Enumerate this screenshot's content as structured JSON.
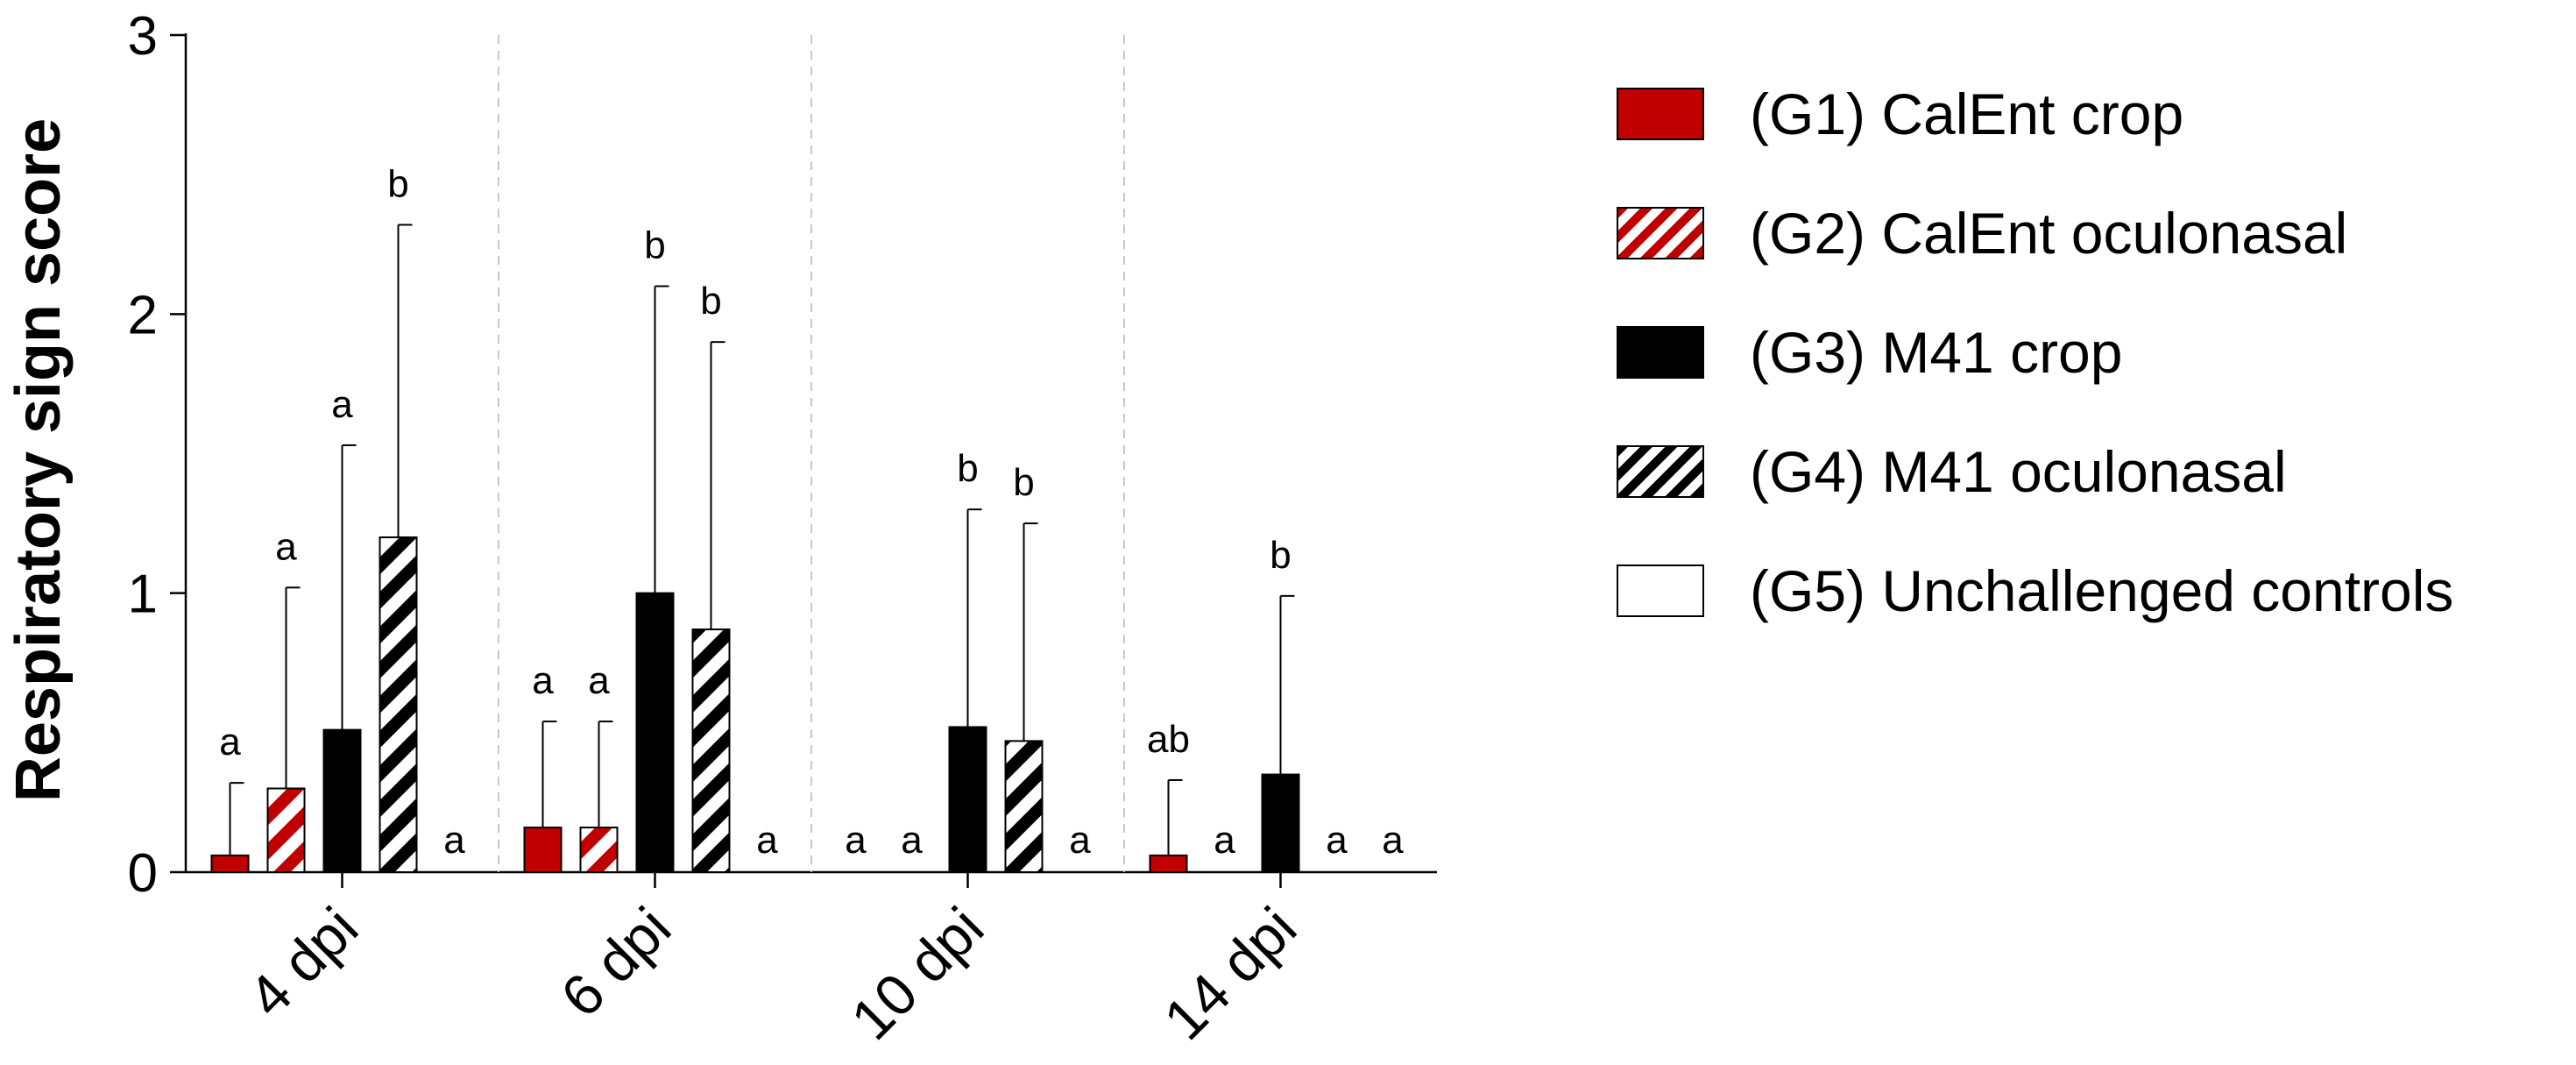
{
  "chart_data": {
    "type": "bar",
    "ylabel": "Respiratory sign score",
    "xlabel": "",
    "ylim": [
      0,
      3
    ],
    "yticks": [
      "0",
      "1",
      "2",
      "3"
    ],
    "categories": [
      "4 dpi",
      "6 dpi",
      "10 dpi",
      "14 dpi"
    ],
    "series": [
      {
        "name": "(G1) CalEnt crop",
        "color": "#c00000",
        "pattern": "solid",
        "values": [
          0.06,
          0.16,
          0,
          0.06
        ],
        "errors": [
          0.26,
          0.38,
          0,
          0.27
        ],
        "letters": [
          "a",
          "a",
          "a",
          "ab"
        ]
      },
      {
        "name": "(G2) CalEnt oculonasal",
        "color": "#c00000",
        "pattern": "hatched",
        "values": [
          0.3,
          0.16,
          0,
          0
        ],
        "errors": [
          0.72,
          0.38,
          0,
          0
        ],
        "letters": [
          "a",
          "a",
          "a",
          "a"
        ]
      },
      {
        "name": "(G3) M41 crop",
        "color": "#000000",
        "pattern": "solid",
        "values": [
          0.51,
          1.0,
          0.52,
          0.35
        ],
        "errors": [
          1.02,
          1.1,
          0.78,
          0.64
        ],
        "letters": [
          "a",
          "b",
          "b",
          "b"
        ]
      },
      {
        "name": "(G4) M41 oculonasal",
        "color": "#000000",
        "pattern": "hatched",
        "values": [
          1.2,
          0.87,
          0.47,
          0
        ],
        "errors": [
          1.12,
          1.03,
          0.78,
          0
        ],
        "letters": [
          "b",
          "b",
          "b",
          "a"
        ]
      },
      {
        "name": "(G5) Unchallenged controls",
        "color": "#ffffff",
        "pattern": "empty",
        "values": [
          0,
          0,
          0,
          0
        ],
        "errors": [
          0,
          0,
          0,
          0
        ],
        "letters": [
          "a",
          "a",
          "a",
          "a"
        ]
      }
    ]
  }
}
